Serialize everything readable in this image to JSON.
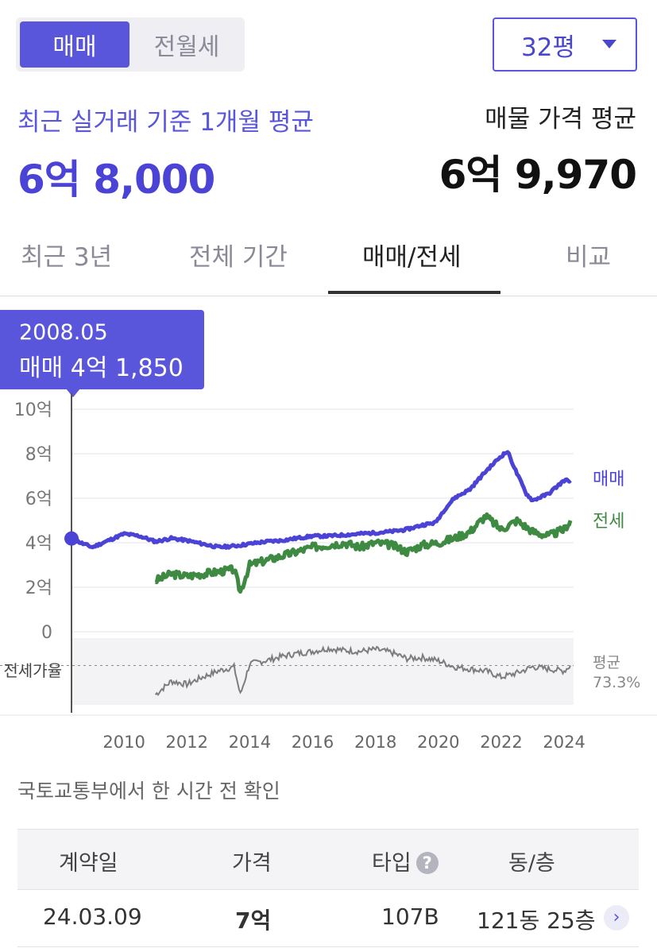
{
  "header": {
    "trade_tabs": [
      {
        "label": "매매",
        "active": true
      },
      {
        "label": "전월세",
        "active": false
      }
    ],
    "area_select": {
      "value": "32평",
      "icon": "chevron-down-icon"
    }
  },
  "summary": {
    "recent_label": "최근 실거래 기준 1개월 평균",
    "recent_price": "6억 8,000",
    "listing_label": "매물 가격 평균",
    "listing_price": "6억 9,970"
  },
  "period_tabs": [
    {
      "label": "최근 3년",
      "active": false
    },
    {
      "label": "전체 기간",
      "active": false
    },
    {
      "label": "매매/전세",
      "active": true
    },
    {
      "label": "비교",
      "active": false
    }
  ],
  "tooltip": {
    "date": "2008.05",
    "value": "매매 4억 1,850"
  },
  "colors": {
    "accent": "#5a56db",
    "sale_line": "#4a43d6",
    "jeonse_line": "#3f8a43",
    "ratio_line": "#7d7d7d"
  },
  "chart_data": {
    "type": "line",
    "y_ticks": [
      "10억",
      "8억",
      "6억",
      "4억",
      "2억",
      "0"
    ],
    "ylim": [
      0,
      10
    ],
    "x_ticks": [
      "2010",
      "2012",
      "2014",
      "2016",
      "2018",
      "2020",
      "2022",
      "2024"
    ],
    "xlim": [
      2008.33,
      2024.3
    ],
    "grid": true,
    "series": [
      {
        "name": "매매",
        "unit": "억",
        "points": [
          [
            2008.33,
            4.19
          ],
          [
            2008.7,
            3.95
          ],
          [
            2009.0,
            3.8
          ],
          [
            2009.5,
            4.1
          ],
          [
            2010.0,
            4.4
          ],
          [
            2010.5,
            4.3
          ],
          [
            2011.0,
            4.05
          ],
          [
            2011.5,
            4.2
          ],
          [
            2012.0,
            4.1
          ],
          [
            2012.5,
            3.95
          ],
          [
            2013.0,
            3.8
          ],
          [
            2013.5,
            3.85
          ],
          [
            2014.0,
            3.95
          ],
          [
            2014.5,
            4.05
          ],
          [
            2015.0,
            4.1
          ],
          [
            2015.5,
            4.2
          ],
          [
            2016.0,
            4.3
          ],
          [
            2016.5,
            4.3
          ],
          [
            2017.0,
            4.35
          ],
          [
            2017.5,
            4.4
          ],
          [
            2018.0,
            4.45
          ],
          [
            2018.5,
            4.5
          ],
          [
            2019.0,
            4.6
          ],
          [
            2019.5,
            4.8
          ],
          [
            2019.9,
            4.9
          ],
          [
            2020.2,
            5.5
          ],
          [
            2020.5,
            6.0
          ],
          [
            2021.0,
            6.4
          ],
          [
            2021.5,
            7.2
          ],
          [
            2022.0,
            7.9
          ],
          [
            2022.2,
            8.1
          ],
          [
            2022.5,
            7.1
          ],
          [
            2022.8,
            6.2
          ],
          [
            2023.0,
            5.9
          ],
          [
            2023.5,
            6.2
          ],
          [
            2024.0,
            6.8
          ],
          [
            2024.2,
            6.8
          ]
        ]
      },
      {
        "name": "전세",
        "unit": "억",
        "points": [
          [
            2011.0,
            2.3
          ],
          [
            2011.5,
            2.6
          ],
          [
            2012.0,
            2.5
          ],
          [
            2012.5,
            2.6
          ],
          [
            2013.0,
            2.7
          ],
          [
            2013.5,
            2.8
          ],
          [
            2013.7,
            1.8
          ],
          [
            2014.0,
            3.0
          ],
          [
            2014.5,
            3.2
          ],
          [
            2015.0,
            3.4
          ],
          [
            2015.5,
            3.6
          ],
          [
            2016.0,
            3.8
          ],
          [
            2016.5,
            3.9
          ],
          [
            2017.0,
            4.0
          ],
          [
            2017.5,
            3.8
          ],
          [
            2018.0,
            4.0
          ],
          [
            2018.5,
            3.9
          ],
          [
            2019.0,
            3.6
          ],
          [
            2019.5,
            3.9
          ],
          [
            2020.0,
            4.0
          ],
          [
            2020.5,
            4.2
          ],
          [
            2021.0,
            4.5
          ],
          [
            2021.5,
            5.2
          ],
          [
            2022.0,
            4.6
          ],
          [
            2022.5,
            5.0
          ],
          [
            2023.0,
            4.5
          ],
          [
            2023.5,
            4.3
          ],
          [
            2024.0,
            4.6
          ],
          [
            2024.2,
            5.0
          ]
        ]
      }
    ],
    "ratio_label": "전세가율",
    "ratio_series": {
      "points": [
        [
          2011.0,
          45
        ],
        [
          2011.5,
          58
        ],
        [
          2012.0,
          55
        ],
        [
          2012.5,
          62
        ],
        [
          2013.0,
          68
        ],
        [
          2013.5,
          72
        ],
        [
          2013.7,
          45
        ],
        [
          2014.0,
          75
        ],
        [
          2014.5,
          78
        ],
        [
          2015.0,
          82
        ],
        [
          2015.5,
          85
        ],
        [
          2016.0,
          87
        ],
        [
          2016.5,
          90
        ],
        [
          2017.0,
          88
        ],
        [
          2017.5,
          87
        ],
        [
          2018.0,
          89
        ],
        [
          2018.5,
          86
        ],
        [
          2019.0,
          80
        ],
        [
          2019.5,
          81
        ],
        [
          2020.0,
          78
        ],
        [
          2020.5,
          72
        ],
        [
          2021.0,
          70
        ],
        [
          2021.5,
          68
        ],
        [
          2022.0,
          62
        ],
        [
          2022.5,
          66
        ],
        [
          2023.0,
          72
        ],
        [
          2023.5,
          70
        ],
        [
          2024.0,
          68
        ],
        [
          2024.2,
          73.3
        ]
      ]
    },
    "ratio_average": {
      "label": "평균",
      "value": "73.3%"
    }
  },
  "update_note": "국토교통부에서 한 시간 전 확인",
  "transactions": {
    "headers": {
      "date": "계약일",
      "price": "가격",
      "type": "타입",
      "unit": "동/층"
    },
    "rows": [
      {
        "date": "24.03.09",
        "price": "7억",
        "type": "107B",
        "unit": "121동 25층"
      }
    ]
  }
}
